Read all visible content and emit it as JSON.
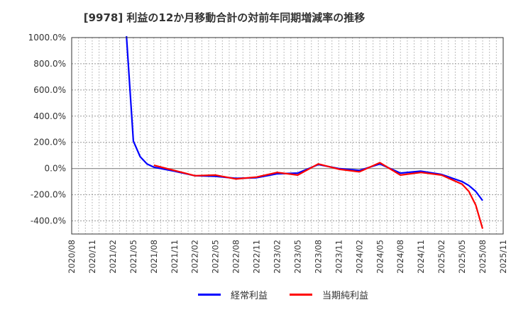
{
  "title": "[9978]  利益の12か月移動合計の対前年同期増減率の推移",
  "legend": [
    {
      "label": "経常利益",
      "color": "#0000ff"
    },
    {
      "label": "当期純利益",
      "color": "#ff0000"
    }
  ],
  "chart_data": {
    "type": "line",
    "title": "[9978]  利益の12か月移動合計の対前年同期増減率の推移",
    "xlabel": "",
    "ylabel": "",
    "ylim": [
      -500,
      1000
    ],
    "yticks": [
      "1000.0%",
      "800.0%",
      "600.0%",
      "400.0%",
      "200.0%",
      "0.0%",
      "-200.0%",
      "-400.0%"
    ],
    "ytick_values": [
      1000,
      800,
      600,
      400,
      200,
      0,
      -200,
      -400
    ],
    "xticks": [
      "2020/08",
      "2020/11",
      "2021/02",
      "2021/05",
      "2021/08",
      "2021/11",
      "2022/02",
      "2022/05",
      "2022/08",
      "2022/11",
      "2023/02",
      "2023/05",
      "2023/08",
      "2023/11",
      "2024/02",
      "2024/05",
      "2024/08",
      "2024/11",
      "2025/02",
      "2025/05",
      "2025/08",
      "2025/11"
    ],
    "grid": true,
    "legend_position": "bottom",
    "x": [
      "2021/04",
      "2021/05",
      "2021/06",
      "2021/07",
      "2021/08",
      "2021/11",
      "2022/02",
      "2022/05",
      "2022/08",
      "2022/11",
      "2023/02",
      "2023/05",
      "2023/08",
      "2023/11",
      "2024/02",
      "2024/05",
      "2024/08",
      "2024/11",
      "2025/02",
      "2025/05",
      "2025/06",
      "2025/07",
      "2025/08"
    ],
    "series": [
      {
        "name": "経常利益",
        "color": "#0000ff",
        "values": [
          1000,
          210,
          90,
          35,
          10,
          -20,
          -55,
          -60,
          -75,
          -70,
          -40,
          -35,
          30,
          0,
          -15,
          35,
          -35,
          -20,
          -45,
          -100,
          -130,
          -175,
          -245
        ]
      },
      {
        "name": "当期純利益",
        "color": "#ff0000",
        "values": [
          null,
          null,
          null,
          null,
          25,
          -15,
          -55,
          -50,
          -80,
          -65,
          -30,
          -50,
          35,
          -5,
          -25,
          45,
          -50,
          -30,
          -50,
          -120,
          -175,
          -280,
          -460
        ]
      }
    ]
  }
}
